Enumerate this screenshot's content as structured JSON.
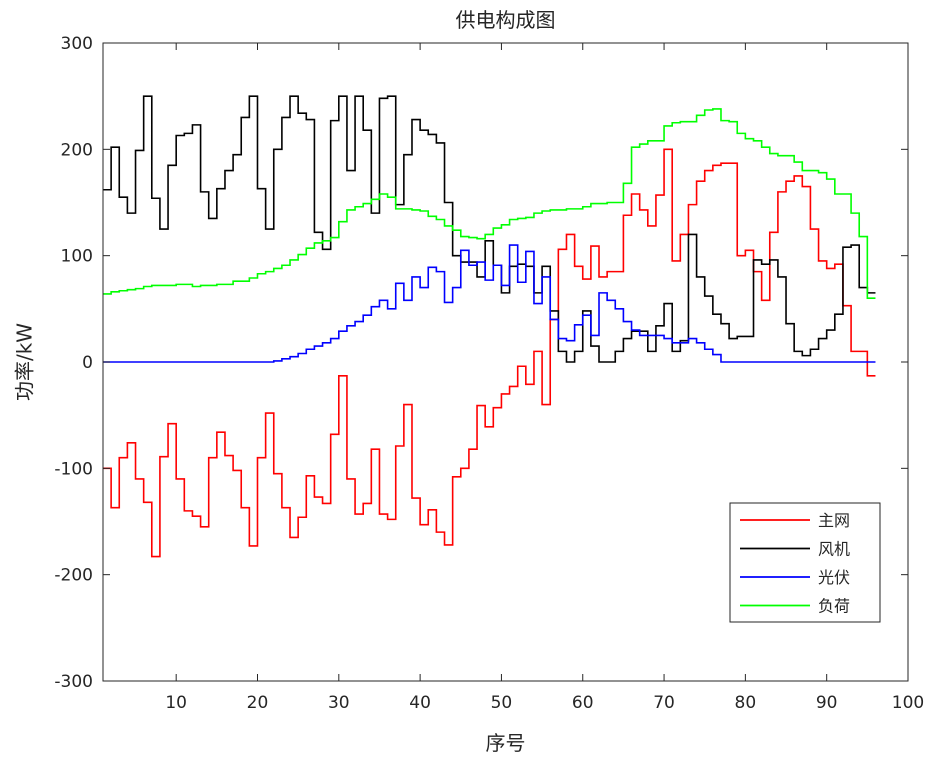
{
  "chart_data": {
    "type": "line",
    "title": "供电构成图",
    "xlabel": "序号",
    "ylabel": "功率/kW",
    "xlim": [
      1,
      100
    ],
    "ylim": [
      -300,
      300
    ],
    "xticks": [
      10,
      20,
      30,
      40,
      50,
      60,
      70,
      80,
      90,
      100
    ],
    "yticks": [
      -300,
      -200,
      -100,
      0,
      100,
      200,
      300
    ],
    "grid": false,
    "legend_position": "lower-right",
    "step": true,
    "series": [
      {
        "name": "主网",
        "color": "#ff0000",
        "values": [
          -100,
          -137,
          -90,
          -76,
          -110,
          -132,
          -183,
          -89,
          -58,
          -110,
          -140,
          -145,
          -155,
          -90,
          -66,
          -88,
          -102,
          -137,
          -173,
          -90,
          -48,
          -105,
          -137,
          -165,
          -146,
          -107,
          -127,
          -133,
          -68,
          -13,
          -110,
          -143,
          -133,
          -82,
          -143,
          -148,
          -79,
          -40,
          -128,
          -153,
          -139,
          -160,
          -172,
          -108,
          -100,
          -82,
          -41,
          -61,
          -43,
          -30,
          -23,
          -4,
          -21,
          10,
          -40,
          40,
          106,
          120,
          90,
          78,
          109,
          80,
          85,
          85,
          138,
          158,
          143,
          128,
          157,
          200,
          95,
          120,
          148,
          170,
          180,
          185,
          187,
          187,
          100,
          105,
          85,
          58,
          122,
          160,
          170,
          175,
          165,
          125,
          95,
          88,
          92,
          53,
          10,
          10,
          -13,
          -13
        ]
      },
      {
        "name": "风机",
        "color": "#000000",
        "values": [
          162,
          202,
          155,
          140,
          199,
          250,
          154,
          125,
          185,
          213,
          215,
          223,
          160,
          135,
          163,
          180,
          195,
          230,
          250,
          163,
          125,
          200,
          230,
          250,
          234,
          228,
          122,
          106,
          227,
          250,
          180,
          250,
          218,
          140,
          248,
          250,
          148,
          195,
          228,
          218,
          214,
          206,
          150,
          100,
          94,
          94,
          80,
          114,
          91,
          65,
          90,
          92,
          90,
          65,
          90,
          48,
          10,
          0,
          10,
          48,
          15,
          0,
          0,
          10,
          22,
          29,
          29,
          10,
          34,
          55,
          10,
          20,
          120,
          80,
          62,
          45,
          36,
          22,
          24,
          24,
          96,
          92,
          96,
          80,
          36,
          10,
          6,
          12,
          22,
          30,
          45,
          108,
          110,
          70,
          65,
          65
        ]
      },
      {
        "name": "光伏",
        "color": "#0000ff",
        "values": [
          0,
          0,
          0,
          0,
          0,
          0,
          0,
          0,
          0,
          0,
          0,
          0,
          0,
          0,
          0,
          0,
          0,
          0,
          0,
          0,
          0,
          1,
          3,
          5,
          8,
          12,
          15,
          18,
          22,
          29,
          34,
          38,
          44,
          52,
          58,
          50,
          74,
          58,
          80,
          70,
          89,
          85,
          56,
          70,
          105,
          91,
          94,
          77,
          91,
          72,
          110,
          75,
          104,
          55,
          80,
          40,
          22,
          20,
          35,
          44,
          25,
          65,
          58,
          50,
          38,
          30,
          25,
          25,
          25,
          22,
          18,
          18,
          22,
          18,
          12,
          7,
          0,
          0,
          0,
          0,
          0,
          0,
          0,
          0,
          0,
          0,
          0,
          0,
          0,
          0,
          0,
          0,
          0,
          0,
          0,
          0
        ]
      },
      {
        "name": "负荷",
        "color": "#00ff00",
        "values": [
          64,
          66,
          67,
          68,
          69,
          71,
          72,
          72,
          72,
          73,
          73,
          71,
          72,
          72,
          73,
          73,
          76,
          76,
          79,
          83,
          85,
          88,
          91,
          96,
          101,
          107,
          112,
          114,
          117,
          132,
          143,
          146,
          149,
          153,
          158,
          155,
          144,
          144,
          143,
          142,
          137,
          134,
          128,
          124,
          118,
          117,
          116,
          120,
          126,
          129,
          134,
          135,
          136,
          140,
          142,
          143,
          143,
          144,
          144,
          146,
          149,
          149,
          150,
          150,
          168,
          202,
          205,
          208,
          208,
          222,
          225,
          226,
          226,
          232,
          237,
          238,
          227,
          226,
          215,
          210,
          208,
          202,
          196,
          194,
          194,
          188,
          180,
          180,
          178,
          172,
          158,
          158,
          140,
          118,
          60,
          60
        ]
      }
    ]
  }
}
